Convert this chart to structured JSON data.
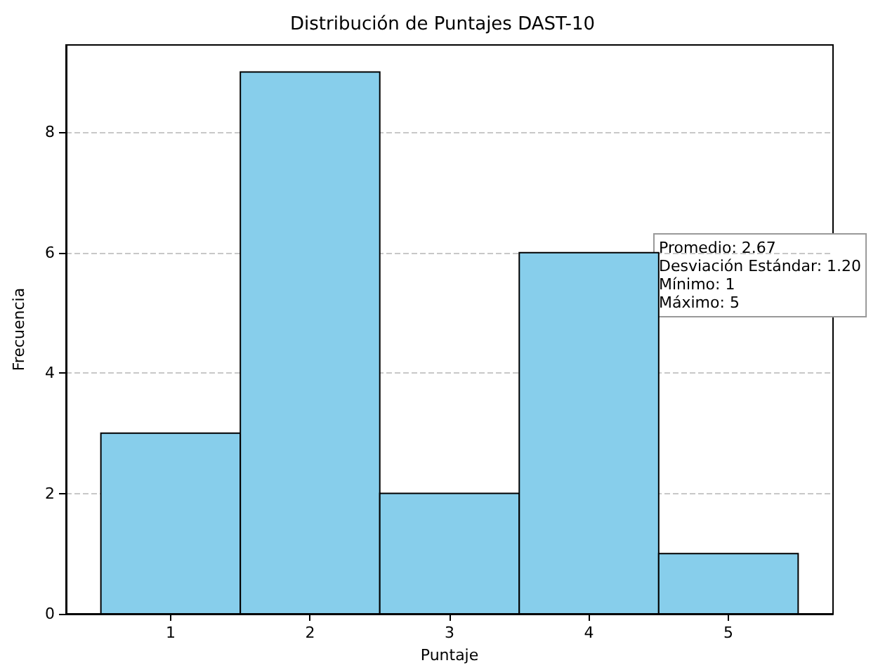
{
  "chart_data": {
    "type": "histogram",
    "title": "Distribución de Puntajes DAST-10",
    "xlabel": "Puntaje",
    "ylabel": "Frecuencia",
    "bins": [
      0.5,
      1.5,
      2.5,
      3.5,
      4.5,
      5.5
    ],
    "values": [
      3,
      9,
      2,
      6,
      1
    ],
    "color": "#87ceeb",
    "xlim": [
      0.25,
      5.75
    ],
    "xticks": [
      1,
      2,
      3,
      4,
      5
    ],
    "ylim": [
      0,
      9.45
    ],
    "yticks": [
      0,
      2,
      4,
      6,
      8
    ],
    "grid": "y",
    "annotations": [
      "Promedio: 2.67",
      "Desviación Estándar: 1.20",
      "Mínimo: 1",
      "Máximo: 5"
    ]
  }
}
